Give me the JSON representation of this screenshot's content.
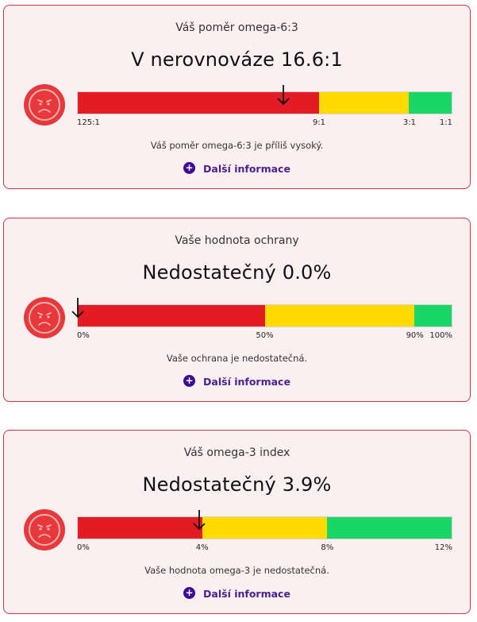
{
  "cards": [
    {
      "title": "Váš poměr omega-6:3",
      "result": "V nerovnováze 16.6:1",
      "message": "Váš poměr omega-6:3 je příliš vysoký.",
      "more_label": "Další informace",
      "plus_symbol": "+",
      "value": 16.6,
      "marker_fraction": 0.55,
      "segments": [
        {
          "color": "#e31b25",
          "fraction_start": 0,
          "fraction_end": 0.6448
        },
        {
          "color": "#ffdb00",
          "fraction_start": 0.6448,
          "fraction_end": 0.8858
        },
        {
          "color": "#1ad666",
          "fraction_start": 0.8858,
          "fraction_end": 1
        }
      ],
      "ticks": [
        {
          "label": "125:1",
          "fraction": 0
        },
        {
          "label": "9:1",
          "fraction": 0.6448
        },
        {
          "label": "3:1",
          "fraction": 0.8858
        },
        {
          "label": "1:1",
          "fraction": 1
        }
      ]
    },
    {
      "title": "Vaše hodnota ochrany",
      "result": "Nedostatečný 0.0%",
      "message": "Vaše ochrana je nedostatečná.",
      "more_label": "Další informace",
      "plus_symbol": "+",
      "value": 0.0,
      "marker_fraction": 0.0,
      "segments": [
        {
          "color": "#e31b25",
          "fraction_start": 0,
          "fraction_end": 0.5
        },
        {
          "color": "#ffdb00",
          "fraction_start": 0.5,
          "fraction_end": 0.9
        },
        {
          "color": "#1ad666",
          "fraction_start": 0.9,
          "fraction_end": 1
        }
      ],
      "ticks": [
        {
          "label": "0%",
          "fraction": 0
        },
        {
          "label": "50%",
          "fraction": 0.5
        },
        {
          "label": "90%",
          "fraction": 0.9
        },
        {
          "label": "100%",
          "fraction": 1
        }
      ]
    },
    {
      "title": "Váš omega-3 index",
      "result": "Nedostatečný 3.9%",
      "message": "Vaše hodnota omega-3 je nedostatečná.",
      "more_label": "Další informace",
      "plus_symbol": "+",
      "value": 3.9,
      "marker_fraction": 0.325,
      "segments": [
        {
          "color": "#e31b25",
          "fraction_start": 0,
          "fraction_end": 0.3333
        },
        {
          "color": "#ffdb00",
          "fraction_start": 0.3333,
          "fraction_end": 0.6667
        },
        {
          "color": "#1ad666",
          "fraction_start": 0.6667,
          "fraction_end": 1
        }
      ],
      "ticks": [
        {
          "label": "0%",
          "fraction": 0
        },
        {
          "label": "4%",
          "fraction": 0.3333
        },
        {
          "label": "8%",
          "fraction": 0.6667
        },
        {
          "label": "12%",
          "fraction": 1
        }
      ]
    }
  ],
  "icons": {
    "status_face": "sad-face-icon",
    "marker": "down-arrow-icon",
    "more": "plus-circle-icon"
  },
  "colors": {
    "card_border": "#d8333f",
    "card_bg": "#fbf0f1",
    "face": "#e8383b",
    "link": "#4b1f8f"
  }
}
